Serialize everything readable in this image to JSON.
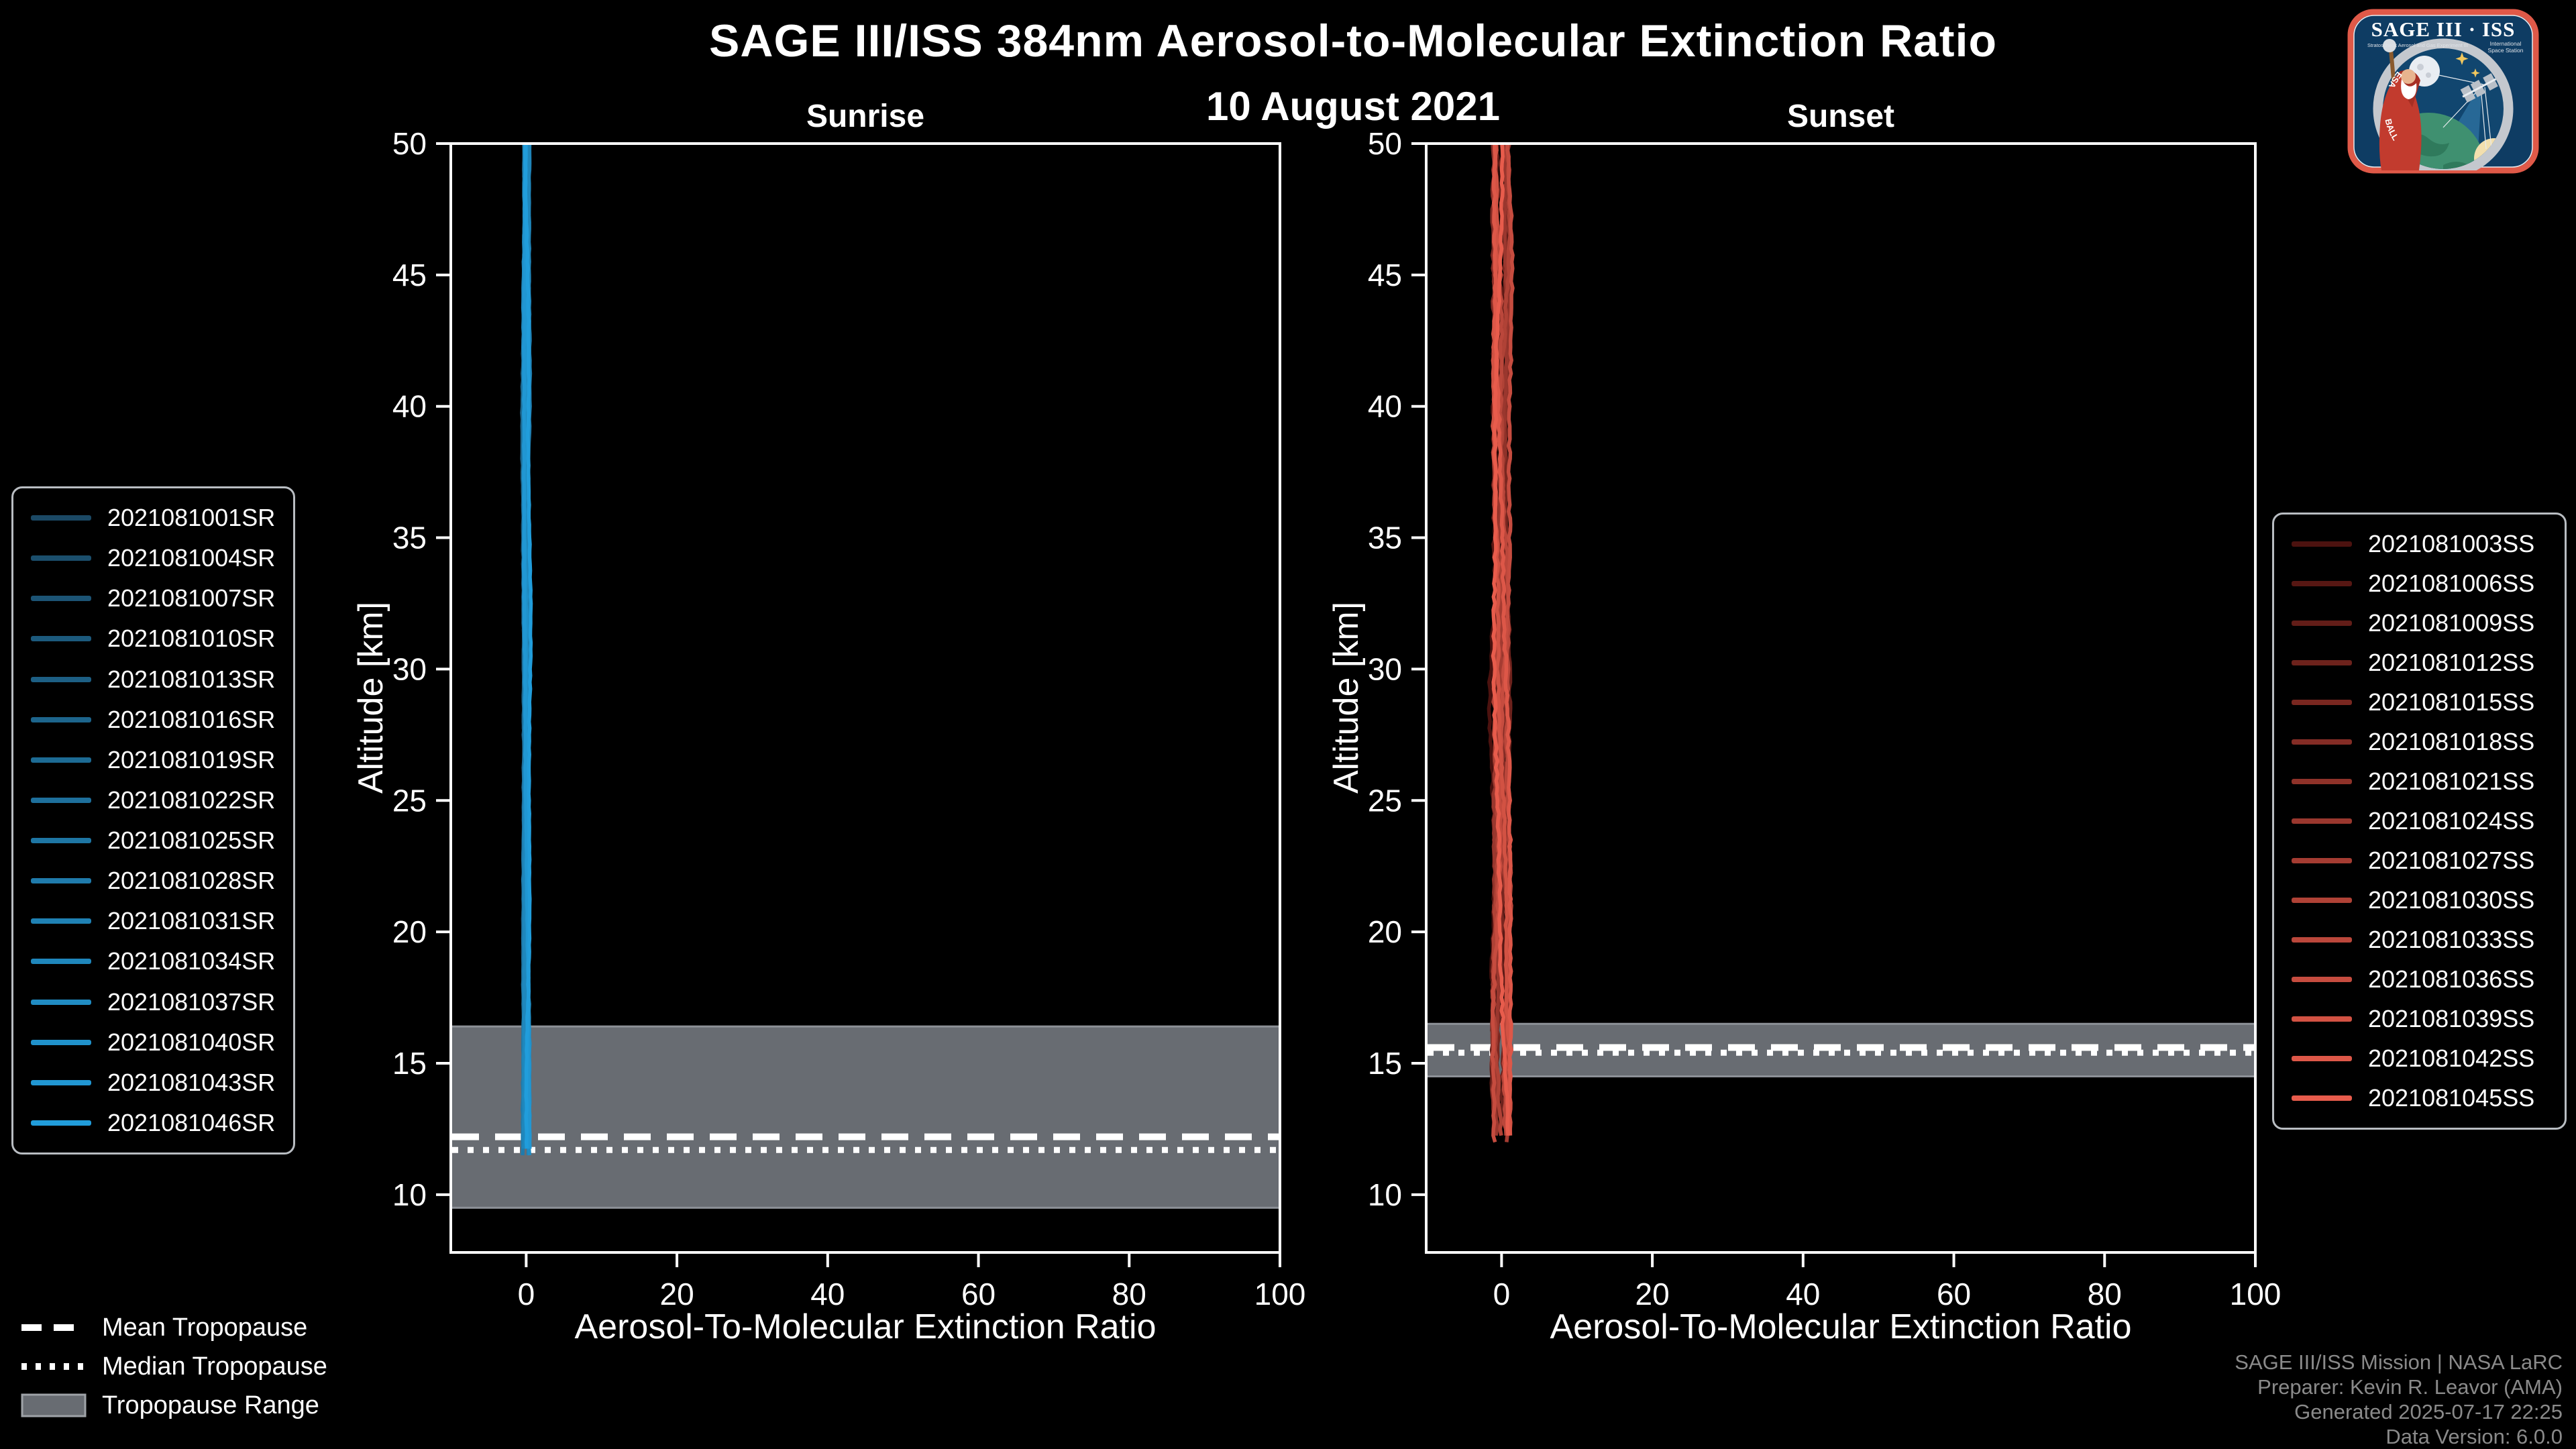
{
  "header": {
    "title": "SAGE III/ISS 384nm Aerosol-to-Molecular Extinction Ratio",
    "date": "10 August 2021"
  },
  "attribution": {
    "line1": "SAGE III/ISS Mission | NASA LaRC",
    "line2": "Preparer: Kevin R. Leavor (AMA)",
    "line3": "Generated 2025-07-17 22:25",
    "line4": "Data Version: 6.0.0"
  },
  "tropopause_legend": {
    "mean_label": "Mean Tropopause",
    "median_label": "Median Tropopause",
    "range_label": "Tropopause Range"
  },
  "logo": {
    "title": "SAGE III · ISS",
    "subtitle_left": "Stratospheric Aerosol and Gas Experiment III",
    "subtitle_right1": "International",
    "subtitle_right2": "Space Station",
    "ring_left": "BALL",
    "ring_right": "ESA"
  },
  "colors": {
    "background": "#000000",
    "text": "#ffffff",
    "muted_text": "#8a8a8a",
    "band_fill": "#686c72",
    "band_edge": "#8d9197",
    "frame": "#ffffff",
    "sunrise_line_bright": "#219ddb",
    "sunset_line_bright": "#e85c4c"
  },
  "chart_data": {
    "type": "line",
    "grid": false,
    "panels": [
      {
        "title": "Sunrise",
        "xlabel": "Aerosol-To-Molecular Extinction Ratio",
        "ylabel": "Altitude [km]",
        "xlim": [
          -10,
          100
        ],
        "ylim": [
          7.8,
          50
        ],
        "xticks": [
          0,
          20,
          40,
          60,
          80,
          100
        ],
        "yticks": [
          10,
          15,
          20,
          25,
          30,
          35,
          40,
          45,
          50
        ],
        "profile": {
          "ratio_center": 0,
          "alt_top_km": 50,
          "alt_bottom_km": 11.6,
          "noise_amplitude": 0.35
        },
        "tropopause": {
          "range_km": [
            9.5,
            16.4
          ],
          "mean_km": 12.2,
          "median_km": 11.7
        },
        "legend_side": "left",
        "series": [
          {
            "name": "2021081001SR",
            "color": "#1b4965"
          },
          {
            "name": "2021081004SR",
            "color": "#1b4f6d"
          },
          {
            "name": "2021081007SR",
            "color": "#1c5475"
          },
          {
            "name": "2021081010SR",
            "color": "#1c5a7d"
          },
          {
            "name": "2021081013SR",
            "color": "#1d5f84"
          },
          {
            "name": "2021081016SR",
            "color": "#1d658c"
          },
          {
            "name": "2021081019SR",
            "color": "#1d6b94"
          },
          {
            "name": "2021081022SR",
            "color": "#1e709c"
          },
          {
            "name": "2021081025SR",
            "color": "#1e76a4"
          },
          {
            "name": "2021081028SR",
            "color": "#1f7bac"
          },
          {
            "name": "2021081031SR",
            "color": "#1f81b4"
          },
          {
            "name": "2021081034SR",
            "color": "#1f87bc"
          },
          {
            "name": "2021081037SR",
            "color": "#208cc3"
          },
          {
            "name": "2021081040SR",
            "color": "#2092cb"
          },
          {
            "name": "2021081043SR",
            "color": "#2197d3"
          },
          {
            "name": "2021081046SR",
            "color": "#219ddb"
          }
        ]
      },
      {
        "title": "Sunset",
        "xlabel": "Aerosol-To-Molecular Extinction Ratio",
        "ylabel": "Altitude [km]",
        "xlim": [
          -10,
          100
        ],
        "ylim": [
          7.8,
          50
        ],
        "xticks": [
          0,
          20,
          40,
          60,
          80,
          100
        ],
        "yticks": [
          10,
          15,
          20,
          25,
          30,
          35,
          40,
          45,
          50
        ],
        "profile": {
          "ratio_center": 0,
          "alt_top_km": 50,
          "alt_bottom_km": 12.1,
          "noise_amplitude": 1.0
        },
        "tropopause": {
          "range_km": [
            14.5,
            16.5
          ],
          "mean_km": 15.6,
          "median_km": 15.4
        },
        "legend_side": "right",
        "series": [
          {
            "name": "2021081003SS",
            "color": "#4c120f"
          },
          {
            "name": "2021081006SS",
            "color": "#571713"
          },
          {
            "name": "2021081009SS",
            "color": "#621d18"
          },
          {
            "name": "2021081012SS",
            "color": "#6d221c"
          },
          {
            "name": "2021081015SS",
            "color": "#792720"
          },
          {
            "name": "2021081018SS",
            "color": "#842c25"
          },
          {
            "name": "2021081021SS",
            "color": "#8f3229"
          },
          {
            "name": "2021081024SS",
            "color": "#9a372e"
          },
          {
            "name": "2021081027SS",
            "color": "#a53c32"
          },
          {
            "name": "2021081030SS",
            "color": "#b04236"
          },
          {
            "name": "2021081033SS",
            "color": "#bb473b"
          },
          {
            "name": "2021081036SS",
            "color": "#c64c3f"
          },
          {
            "name": "2021081039SS",
            "color": "#d25243"
          },
          {
            "name": "2021081042SS",
            "color": "#dd5748"
          },
          {
            "name": "2021081045SS",
            "color": "#e85c4c"
          }
        ]
      }
    ]
  }
}
